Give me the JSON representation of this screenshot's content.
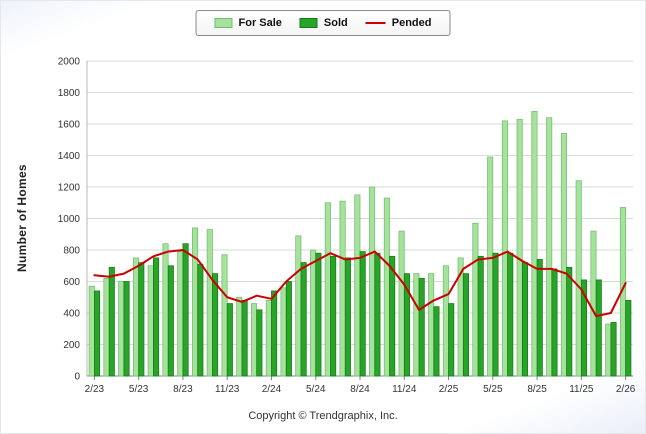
{
  "legend": {
    "for_sale": "For Sale",
    "sold": "Sold",
    "pended": "Pended"
  },
  "ylabel": "Number of Homes",
  "copyright": "Copyright © Trendgraphix, Inc.",
  "colors": {
    "for_sale": "#A6E29C",
    "for_sale_border": "#6FBE6F",
    "sold": "#28A428",
    "sold_border": "#157A15",
    "pended": "#CC0000",
    "grid": "#DADADA",
    "axis": "#808080",
    "text": "#333333"
  },
  "chart_data": {
    "type": "bar",
    "title": "",
    "xlabel": "",
    "ylabel": "Number of Homes",
    "ylim": [
      0,
      2000
    ],
    "ytick_step": 200,
    "grid": "horizontal",
    "legend_position": "top-center",
    "x": [
      "2/23",
      "3/23",
      "4/23",
      "5/23",
      "6/23",
      "7/23",
      "8/23",
      "9/23",
      "10/23",
      "11/23",
      "12/23",
      "1/24",
      "2/24",
      "3/24",
      "4/24",
      "5/24",
      "6/24",
      "7/24",
      "8/24",
      "9/24",
      "10/24",
      "11/24",
      "12/24",
      "1/25",
      "2/25",
      "3/25",
      "4/25",
      "5/25",
      "6/25",
      "7/25",
      "8/25",
      "9/25",
      "10/25",
      "11/25",
      "12/25",
      "1/26",
      "2/26"
    ],
    "x_tick_labels": [
      "2/23",
      "5/23",
      "8/23",
      "11/23",
      "2/24",
      "5/24",
      "8/24",
      "11/24",
      "2/25",
      "5/25",
      "8/25",
      "11/25",
      "2/26"
    ],
    "series": [
      {
        "name": "For Sale",
        "type": "bar",
        "color_key": "for_sale",
        "values": [
          570,
          620,
          600,
          750,
          700,
          840,
          790,
          940,
          930,
          770,
          500,
          460,
          480,
          560,
          890,
          800,
          1100,
          1110,
          1150,
          1200,
          1130,
          920,
          650,
          650,
          700,
          750,
          970,
          1390,
          1620,
          1630,
          1680,
          1640,
          1540,
          1240,
          920,
          330,
          1070
        ]
      },
      {
        "name": "Sold",
        "type": "bar",
        "color_key": "sold",
        "values": [
          540,
          690,
          600,
          720,
          750,
          700,
          840,
          710,
          650,
          460,
          480,
          420,
          540,
          600,
          720,
          780,
          760,
          750,
          790,
          780,
          760,
          650,
          620,
          440,
          460,
          650,
          760,
          780,
          780,
          720,
          740,
          680,
          690,
          610,
          610,
          340,
          480
        ]
      },
      {
        "name": "Pended",
        "type": "line",
        "color_key": "pended",
        "values": [
          640,
          630,
          650,
          700,
          760,
          790,
          800,
          740,
          610,
          500,
          470,
          510,
          490,
          600,
          680,
          730,
          780,
          740,
          750,
          790,
          700,
          580,
          420,
          480,
          520,
          680,
          740,
          750,
          790,
          730,
          680,
          680,
          650,
          550,
          380,
          400,
          590
        ]
      }
    ]
  }
}
